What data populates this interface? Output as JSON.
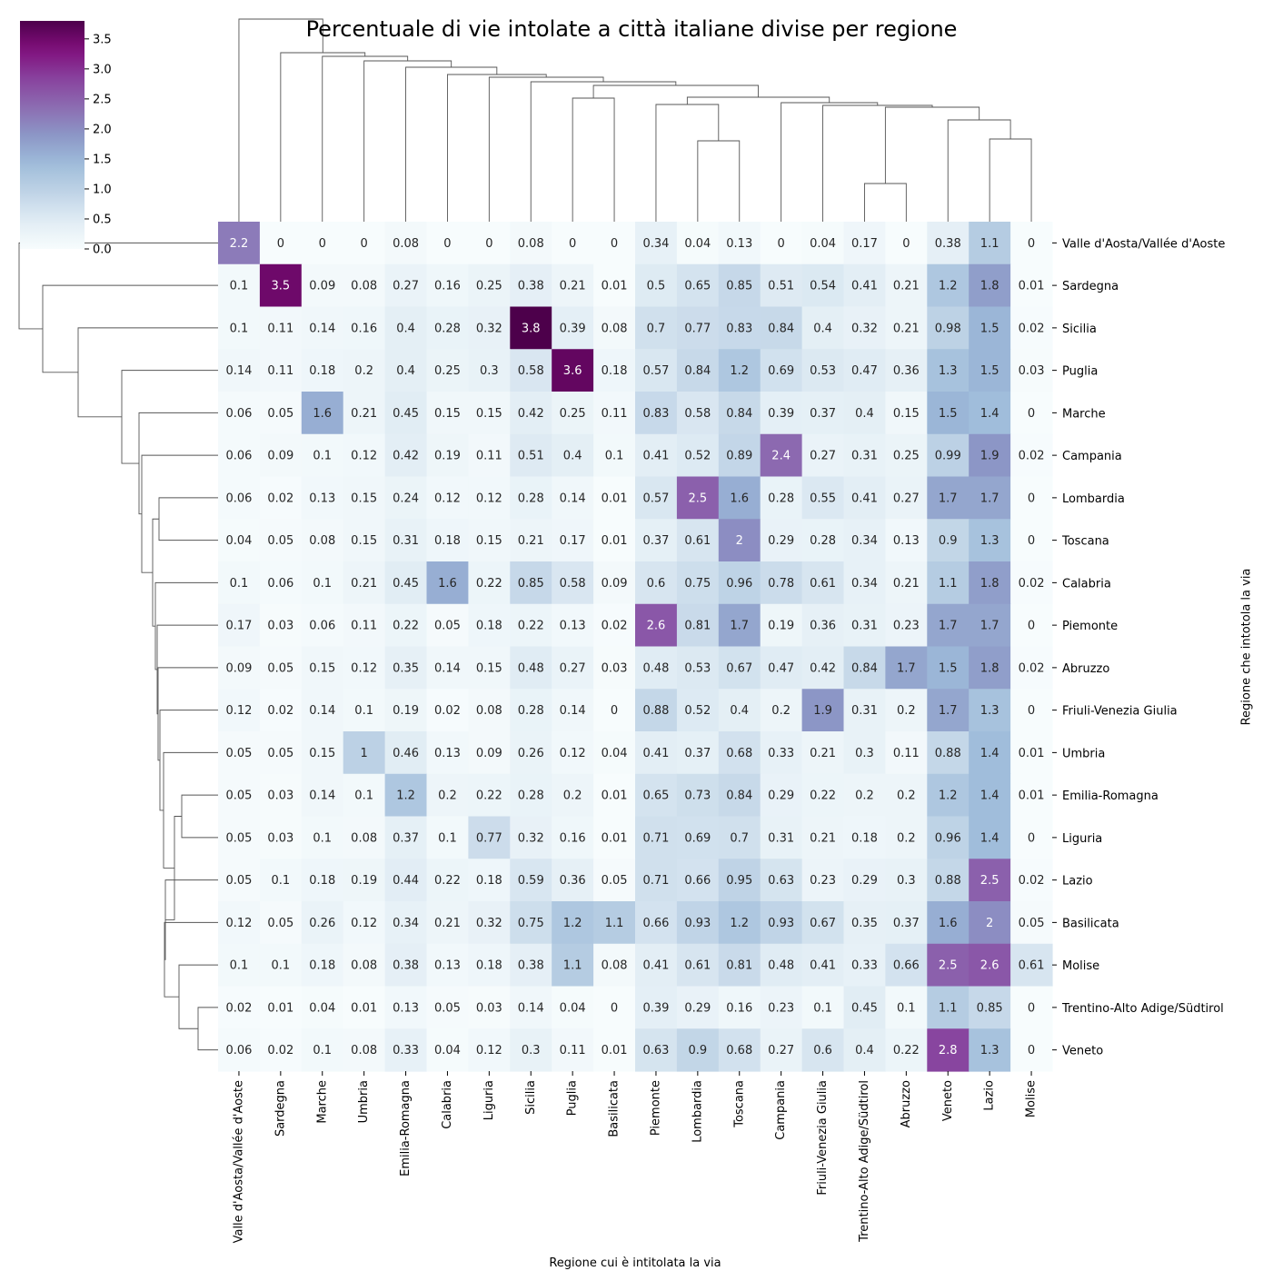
{
  "chart_data": {
    "type": "heatmap",
    "title": "Percentuale di vie intolate a città italiane divise per regione",
    "xlabel": "Regione cui è intitolata la via",
    "ylabel": "Regione che intotola la via",
    "columns": [
      "Valle d'Aosta/Vallée d'Aoste",
      "Sardegna",
      "Marche",
      "Umbria",
      "Emilia-Romagna",
      "Calabria",
      "Liguria",
      "Sicilia",
      "Puglia",
      "Basilicata",
      "Piemonte",
      "Lombardia",
      "Toscana",
      "Campania",
      "Friuli-Venezia Giulia",
      "Trentino-Alto Adige/Südtirol",
      "Abruzzo",
      "Veneto",
      "Lazio",
      "Molise"
    ],
    "rows": [
      "Valle d'Aosta/Vallée d'Aoste",
      "Sardegna",
      "Sicilia",
      "Puglia",
      "Marche",
      "Campania",
      "Lombardia",
      "Toscana",
      "Calabria",
      "Piemonte",
      "Abruzzo",
      "Friuli-Venezia Giulia",
      "Umbria",
      "Emilia-Romagna",
      "Liguria",
      "Lazio",
      "Basilicata",
      "Molise",
      "Trentino-Alto Adige/Südtirol",
      "Veneto"
    ],
    "values": [
      [
        2.2,
        0,
        0,
        0,
        0.08,
        0,
        0,
        0.08,
        0,
        0,
        0.34,
        0.04,
        0.13,
        0,
        0.04,
        0.17,
        0,
        0.38,
        1.1,
        0
      ],
      [
        0.1,
        3.5,
        0.09,
        0.08,
        0.27,
        0.16,
        0.25,
        0.38,
        0.21,
        0.01,
        0.5,
        0.65,
        0.85,
        0.51,
        0.54,
        0.41,
        0.21,
        1.2,
        1.8,
        0.01
      ],
      [
        0.1,
        0.11,
        0.14,
        0.16,
        0.4,
        0.28,
        0.32,
        3.8,
        0.39,
        0.08,
        0.7,
        0.77,
        0.83,
        0.84,
        0.4,
        0.32,
        0.21,
        0.98,
        1.5,
        0.02
      ],
      [
        0.14,
        0.11,
        0.18,
        0.2,
        0.4,
        0.25,
        0.3,
        0.58,
        3.6,
        0.18,
        0.57,
        0.84,
        1.2,
        0.69,
        0.53,
        0.47,
        0.36,
        1.3,
        1.5,
        0.03
      ],
      [
        0.06,
        0.05,
        1.6,
        0.21,
        0.45,
        0.15,
        0.15,
        0.42,
        0.25,
        0.11,
        0.83,
        0.58,
        0.84,
        0.39,
        0.37,
        0.4,
        0.15,
        1.5,
        1.4,
        0
      ],
      [
        0.06,
        0.09,
        0.1,
        0.12,
        0.42,
        0.19,
        0.11,
        0.51,
        0.4,
        0.1,
        0.41,
        0.52,
        0.89,
        2.4,
        0.27,
        0.31,
        0.25,
        0.99,
        1.9,
        0.02
      ],
      [
        0.06,
        0.02,
        0.13,
        0.15,
        0.24,
        0.12,
        0.12,
        0.28,
        0.14,
        0.01,
        0.57,
        2.5,
        1.6,
        0.28,
        0.55,
        0.41,
        0.27,
        1.7,
        1.7,
        0
      ],
      [
        0.04,
        0.05,
        0.08,
        0.15,
        0.31,
        0.18,
        0.15,
        0.21,
        0.17,
        0.01,
        0.37,
        0.61,
        2,
        0.29,
        0.28,
        0.34,
        0.13,
        0.9,
        1.3,
        0
      ],
      [
        0.1,
        0.06,
        0.1,
        0.21,
        0.45,
        1.6,
        0.22,
        0.85,
        0.58,
        0.09,
        0.6,
        0.75,
        0.96,
        0.78,
        0.61,
        0.34,
        0.21,
        1.1,
        1.8,
        0.02
      ],
      [
        0.17,
        0.03,
        0.06,
        0.11,
        0.22,
        0.05,
        0.18,
        0.22,
        0.13,
        0.02,
        2.6,
        0.81,
        1.7,
        0.19,
        0.36,
        0.31,
        0.23,
        1.7,
        1.7,
        0
      ],
      [
        0.09,
        0.05,
        0.15,
        0.12,
        0.35,
        0.14,
        0.15,
        0.48,
        0.27,
        0.03,
        0.48,
        0.53,
        0.67,
        0.47,
        0.42,
        0.84,
        1.7,
        1.5,
        1.8,
        0.02
      ],
      [
        0.12,
        0.02,
        0.14,
        0.1,
        0.19,
        0.02,
        0.08,
        0.28,
        0.14,
        0,
        0.88,
        0.52,
        0.4,
        0.2,
        1.9,
        0.31,
        0.2,
        1.7,
        1.3,
        0
      ],
      [
        0.05,
        0.05,
        0.15,
        1,
        0.46,
        0.13,
        0.09,
        0.26,
        0.12,
        0.04,
        0.41,
        0.37,
        0.68,
        0.33,
        0.21,
        0.3,
        0.11,
        0.88,
        1.4,
        0.01
      ],
      [
        0.05,
        0.03,
        0.14,
        0.1,
        1.2,
        0.2,
        0.22,
        0.28,
        0.2,
        0.01,
        0.65,
        0.73,
        0.84,
        0.29,
        0.22,
        0.2,
        0.2,
        1.2,
        1.4,
        0.01
      ],
      [
        0.05,
        0.03,
        0.1,
        0.08,
        0.37,
        0.1,
        0.77,
        0.32,
        0.16,
        0.01,
        0.71,
        0.69,
        0.7,
        0.31,
        0.21,
        0.18,
        0.2,
        0.96,
        1.4,
        0
      ],
      [
        0.05,
        0.1,
        0.18,
        0.19,
        0.44,
        0.22,
        0.18,
        0.59,
        0.36,
        0.05,
        0.71,
        0.66,
        0.95,
        0.63,
        0.23,
        0.29,
        0.3,
        0.88,
        2.5,
        0.02
      ],
      [
        0.12,
        0.05,
        0.26,
        0.12,
        0.34,
        0.21,
        0.32,
        0.75,
        1.2,
        1.1,
        0.66,
        0.93,
        1.2,
        0.93,
        0.67,
        0.35,
        0.37,
        1.6,
        2,
        0.05
      ],
      [
        0.1,
        0.1,
        0.18,
        0.08,
        0.38,
        0.13,
        0.18,
        0.38,
        1.1,
        0.08,
        0.41,
        0.61,
        0.81,
        0.48,
        0.41,
        0.33,
        0.66,
        2.5,
        2.6,
        0.61
      ],
      [
        0.02,
        0.01,
        0.04,
        0.01,
        0.13,
        0.05,
        0.03,
        0.14,
        0.04,
        0,
        0.39,
        0.29,
        0.16,
        0.23,
        0.1,
        0.45,
        0.1,
        1.1,
        0.85,
        0
      ],
      [
        0.06,
        0.02,
        0.1,
        0.08,
        0.33,
        0.04,
        0.12,
        0.3,
        0.11,
        0.01,
        0.63,
        0.9,
        0.68,
        0.27,
        0.6,
        0.4,
        0.22,
        2.8,
        1.3,
        0
      ]
    ],
    "colorbar": {
      "colormap": "BuPu",
      "vmin": 0,
      "vmax": 3.8,
      "ticks": [
        "0.0",
        "0.5",
        "1.0",
        "1.5",
        "2.0",
        "2.5",
        "3.0",
        "3.5"
      ]
    }
  }
}
